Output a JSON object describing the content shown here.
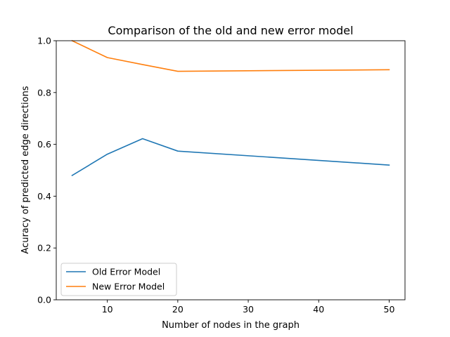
{
  "chart_data": {
    "type": "line",
    "title": "Comparison of the old and new error model",
    "xlabel": "Number of nodes in the graph",
    "ylabel": "Acuracy of predicted edge directions",
    "x": [
      5,
      10,
      15,
      20,
      50
    ],
    "xlim": [
      2.75,
      52.25
    ],
    "ylim": [
      0.0,
      1.0
    ],
    "xticks": [
      "10",
      "20",
      "30",
      "40",
      "50"
    ],
    "yticks": [
      "0.0",
      "0.2",
      "0.4",
      "0.6",
      "0.8",
      "1.0"
    ],
    "grid": false,
    "legend_position": "lower-left",
    "series": [
      {
        "name": "Old Error Model",
        "color": "#1f77b4",
        "values": [
          0.48,
          0.562,
          0.622,
          0.574,
          0.52
        ]
      },
      {
        "name": "New Error Model",
        "color": "#ff7f0e",
        "values": [
          1.0,
          0.935,
          0.908,
          0.882,
          0.888
        ]
      }
    ]
  }
}
